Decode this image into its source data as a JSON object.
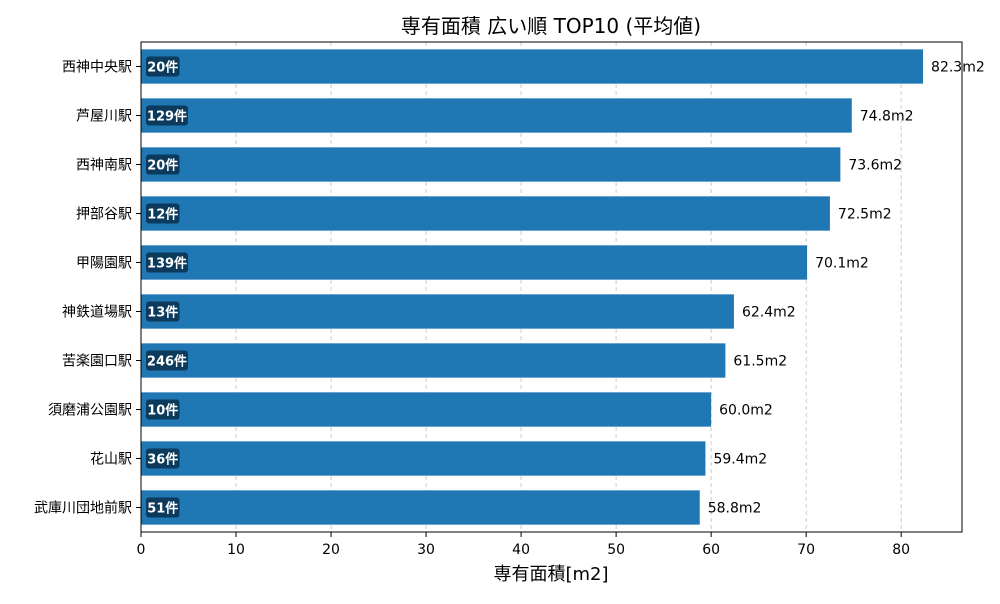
{
  "chart_data": {
    "type": "bar",
    "orientation": "horizontal",
    "title": "専有面積 広い順 TOP10 (平均値)",
    "xlabel": "専有面積[m2]",
    "ylabel": "",
    "xlim": [
      0,
      86.4
    ],
    "xticks": [
      0,
      10,
      20,
      30,
      40,
      50,
      60,
      70,
      80
    ],
    "grid": "x-dashed",
    "colors": {
      "bar": "#1f77b4",
      "badge": "#0b3a5c",
      "grid": "#cccccc",
      "text": "#000000",
      "badge_text": "#ffffff"
    },
    "categories": [
      "西神中央駅",
      "芦屋川駅",
      "西神南駅",
      "押部谷駅",
      "甲陽園駅",
      "神鉄道場駅",
      "苦楽園口駅",
      "須磨浦公園駅",
      "花山駅",
      "武庫川団地前駅"
    ],
    "values": [
      82.3,
      74.8,
      73.6,
      72.5,
      70.1,
      62.4,
      61.5,
      60.0,
      59.4,
      58.8
    ],
    "value_labels": [
      "82.3m2",
      "74.8m2",
      "73.6m2",
      "72.5m2",
      "70.1m2",
      "62.4m2",
      "61.5m2",
      "60.0m2",
      "59.4m2",
      "58.8m2"
    ],
    "count_labels": [
      "20件",
      "129件",
      "20件",
      "12件",
      "139件",
      "13件",
      "246件",
      "10件",
      "36件",
      "51件"
    ]
  }
}
